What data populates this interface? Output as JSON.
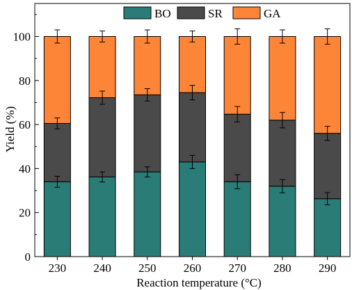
{
  "chart_data": {
    "type": "bar",
    "stacked": true,
    "title": "",
    "xlabel": "Reaction temperature (°C)",
    "ylabel": "Yield (%)",
    "ylim": [
      0,
      115
    ],
    "yticks": [
      "0",
      "20",
      "40",
      "60",
      "80",
      "100"
    ],
    "categories": [
      "230",
      "240",
      "250",
      "260",
      "270",
      "280",
      "290"
    ],
    "legend": {
      "placement": "top-center"
    },
    "grid": false,
    "error_bars": true,
    "series": [
      {
        "name": "BO",
        "color": "#2a7d76",
        "values": [
          34,
          36.2,
          38.5,
          43,
          34,
          32,
          26.3
        ],
        "errors": [
          2.5,
          2.3,
          2.3,
          3.0,
          3.2,
          3.0,
          2.8
        ]
      },
      {
        "name": "SR",
        "color": "#4a4a4a",
        "values": [
          26.5,
          36,
          35,
          31.5,
          30.7,
          30,
          29.7
        ],
        "errors": [
          2.5,
          3.0,
          2.8,
          3.3,
          3.5,
          3.5,
          3.2
        ]
      },
      {
        "name": "GA",
        "color": "#fd8538",
        "values": [
          39.5,
          27.8,
          26.5,
          25.5,
          35.3,
          38,
          44
        ],
        "errors": [
          3.0,
          2.5,
          3.0,
          2.5,
          3.5,
          3.0,
          3.5
        ]
      }
    ]
  }
}
